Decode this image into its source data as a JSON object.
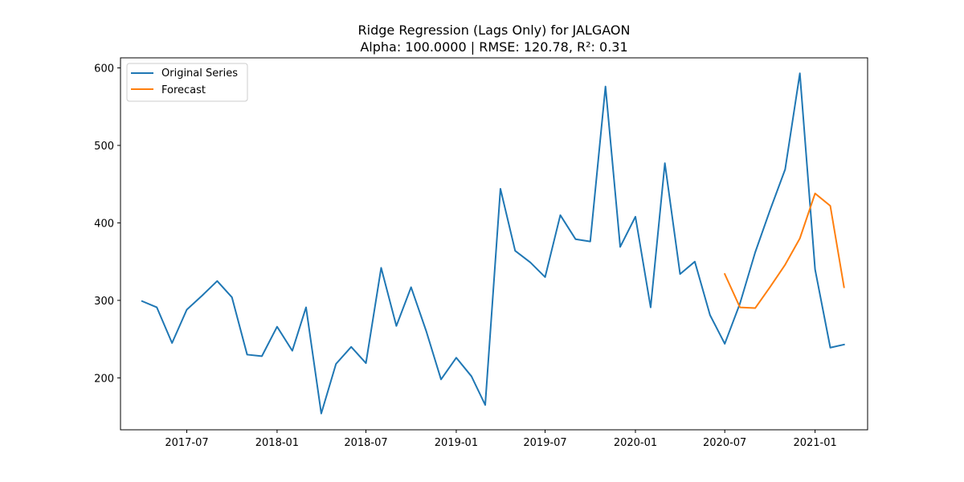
{
  "chart_data": {
    "type": "line",
    "title": "Ridge Regression (Lags Only) for JALGAON",
    "subtitle": "Alpha: 100.0000 | RMSE: 120.78, R²: 0.31",
    "xlabel": "",
    "ylabel": "",
    "xlim": [
      "2017-02-16",
      "2021-04-18"
    ],
    "ylim": [
      133,
      613
    ],
    "xticks": [
      {
        "date": "2017-07-01",
        "label": "2017-07"
      },
      {
        "date": "2018-01-01",
        "label": "2018-01"
      },
      {
        "date": "2018-07-01",
        "label": "2018-07"
      },
      {
        "date": "2019-01-01",
        "label": "2019-01"
      },
      {
        "date": "2019-07-01",
        "label": "2019-07"
      },
      {
        "date": "2020-01-01",
        "label": "2020-01"
      },
      {
        "date": "2020-07-01",
        "label": "2020-07"
      },
      {
        "date": "2021-01-01",
        "label": "2021-01"
      }
    ],
    "yticks": [
      200,
      300,
      400,
      500,
      600
    ],
    "grid": false,
    "legend_position": "top-left",
    "series": [
      {
        "name": "Original Series",
        "color": "#1f77b4",
        "points": [
          [
            "2017-04-01",
            299
          ],
          [
            "2017-05-01",
            291
          ],
          [
            "2017-06-01",
            245
          ],
          [
            "2017-07-01",
            288
          ],
          [
            "2017-08-01",
            306
          ],
          [
            "2017-09-01",
            325
          ],
          [
            "2017-10-01",
            304
          ],
          [
            "2017-11-01",
            230
          ],
          [
            "2017-12-01",
            228
          ],
          [
            "2018-01-01",
            266
          ],
          [
            "2018-02-01",
            235
          ],
          [
            "2018-03-01",
            291
          ],
          [
            "2018-04-01",
            154
          ],
          [
            "2018-05-01",
            218
          ],
          [
            "2018-06-01",
            240
          ],
          [
            "2018-07-01",
            219
          ],
          [
            "2018-08-01",
            342
          ],
          [
            "2018-09-01",
            267
          ],
          [
            "2018-10-01",
            317
          ],
          [
            "2018-11-01",
            260
          ],
          [
            "2018-12-01",
            198
          ],
          [
            "2019-01-01",
            226
          ],
          [
            "2019-02-01",
            202
          ],
          [
            "2019-03-01",
            165
          ],
          [
            "2019-04-01",
            444
          ],
          [
            "2019-05-01",
            364
          ],
          [
            "2019-06-01",
            349
          ],
          [
            "2019-07-01",
            330
          ],
          [
            "2019-08-01",
            410
          ],
          [
            "2019-09-01",
            379
          ],
          [
            "2019-10-01",
            376
          ],
          [
            "2019-11-01",
            576
          ],
          [
            "2019-12-01",
            369
          ],
          [
            "2020-01-01",
            408
          ],
          [
            "2020-02-01",
            291
          ],
          [
            "2020-03-01",
            477
          ],
          [
            "2020-04-01",
            334
          ],
          [
            "2020-05-01",
            350
          ],
          [
            "2020-06-01",
            281
          ],
          [
            "2020-07-01",
            244
          ],
          [
            "2020-08-01",
            296
          ],
          [
            "2020-09-01",
            362
          ],
          [
            "2020-10-01",
            416
          ],
          [
            "2020-11-01",
            469
          ],
          [
            "2020-12-01",
            593
          ],
          [
            "2021-01-01",
            340
          ],
          [
            "2021-02-01",
            239
          ],
          [
            "2021-03-01",
            243
          ]
        ]
      },
      {
        "name": "Forecast",
        "color": "#ff7f0e",
        "points": [
          [
            "2020-07-01",
            334
          ],
          [
            "2020-08-01",
            291
          ],
          [
            "2020-09-01",
            290
          ],
          [
            "2020-10-01",
            317
          ],
          [
            "2020-11-01",
            346
          ],
          [
            "2020-12-01",
            380
          ],
          [
            "2021-01-01",
            438
          ],
          [
            "2021-02-01",
            422
          ],
          [
            "2021-03-01",
            317
          ]
        ]
      }
    ]
  }
}
